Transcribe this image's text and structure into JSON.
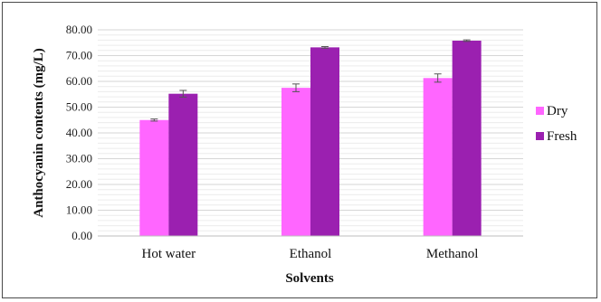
{
  "chart_data": {
    "type": "bar",
    "categories": [
      "Hot water",
      "Ethanol",
      "Methanol"
    ],
    "series": [
      {
        "name": "Dry",
        "values": [
          45.0,
          57.5,
          61.3
        ],
        "errors": [
          0.4,
          1.5,
          1.6
        ],
        "color": "#ff66ff"
      },
      {
        "name": "Fresh",
        "values": [
          55.2,
          73.2,
          75.8
        ],
        "errors": [
          1.3,
          0.3,
          0.3
        ],
        "color": "#9b20b0"
      }
    ],
    "title": "",
    "xlabel": "Solvents",
    "ylabel": "Anthocyanin contents (mg/L)",
    "ylim": [
      0,
      80
    ],
    "yticks": [
      "0.00",
      "10.00",
      "20.00",
      "30.00",
      "40.00",
      "50.00",
      "60.00",
      "70.00",
      "80.00"
    ],
    "grid": true,
    "legend_position": "right"
  }
}
